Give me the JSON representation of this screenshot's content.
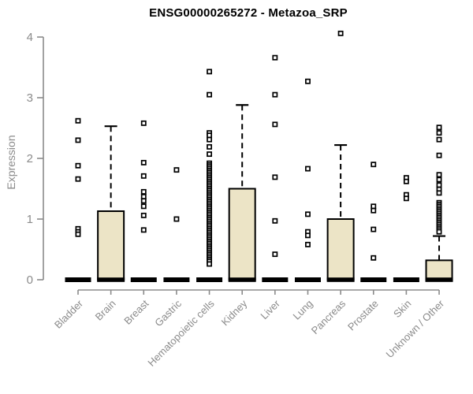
{
  "chart_data": {
    "type": "boxplot",
    "title": "ENSG00000265272 - Metazoa_SRP",
    "xlabel": "",
    "ylabel": "Expression",
    "ylim": [
      0,
      4.1
    ],
    "yticks": [
      0,
      1,
      2,
      3,
      4
    ],
    "ytick_labels": [
      "0",
      "1",
      "2",
      "3",
      "4"
    ],
    "grid": false,
    "legend": "none",
    "colors": {
      "box_fill": "#ECE4C6",
      "box_border": "#000000",
      "axis": "#8b8b8b",
      "tick_label": "#8b8b8b",
      "title": "#000000",
      "outlier_stroke": "#000000",
      "outlier_fill": "#ffffff",
      "background": "#ffffff"
    },
    "categories": [
      "Bladder",
      "Brain",
      "Breast",
      "Gastric",
      "Hematopoietic cells",
      "Kidney",
      "Liver",
      "Lung",
      "Pancreas",
      "Prostate",
      "Skin",
      "Unknown / Other"
    ],
    "series": [
      {
        "name": "Bladder",
        "q1": 0,
        "median": 0,
        "q3": 0,
        "whisker_low": 0,
        "whisker_high": 0,
        "outliers": [
          2.62,
          2.3,
          1.88,
          1.66,
          0.84,
          0.79,
          0.75
        ]
      },
      {
        "name": "Brain",
        "q1": 0,
        "median": 0,
        "q3": 1.13,
        "whisker_low": 0,
        "whisker_high": 2.53,
        "outliers": []
      },
      {
        "name": "Breast",
        "q1": 0,
        "median": 0,
        "q3": 0,
        "whisker_low": 0,
        "whisker_high": 0,
        "outliers": [
          2.58,
          1.93,
          1.71,
          1.45,
          1.37,
          1.3,
          1.21,
          1.06,
          0.82
        ]
      },
      {
        "name": "Gastric",
        "q1": 0,
        "median": 0,
        "q3": 0,
        "whisker_low": 0,
        "whisker_high": 0,
        "outliers": [
          1.81,
          1.0
        ]
      },
      {
        "name": "Hematopoietic cells",
        "q1": 0,
        "median": 0,
        "q3": 0,
        "whisker_low": 0,
        "whisker_high": 0,
        "outliers": [
          3.43,
          3.05,
          2.42,
          2.38,
          2.31,
          2.19,
          2.07,
          1.92,
          1.89,
          1.86,
          1.83,
          1.8,
          1.77,
          1.74,
          1.71,
          1.68,
          1.65,
          1.62,
          1.59,
          1.56,
          1.53,
          1.5,
          1.47,
          1.44,
          1.41,
          1.38,
          1.35,
          1.32,
          1.29,
          1.26,
          1.23,
          1.2,
          1.17,
          1.14,
          1.11,
          1.08,
          1.05,
          1.02,
          0.99,
          0.96,
          0.93,
          0.9,
          0.87,
          0.84,
          0.81,
          0.78,
          0.75,
          0.72,
          0.69,
          0.66,
          0.63,
          0.6,
          0.57,
          0.54,
          0.51,
          0.48,
          0.45,
          0.42,
          0.39,
          0.36,
          0.33,
          0.3,
          0.26
        ]
      },
      {
        "name": "Kidney",
        "q1": 0,
        "median": 0,
        "q3": 1.5,
        "whisker_low": 0,
        "whisker_high": 2.88,
        "outliers": []
      },
      {
        "name": "Liver",
        "q1": 0,
        "median": 0,
        "q3": 0,
        "whisker_low": 0,
        "whisker_high": 0,
        "outliers": [
          3.66,
          3.05,
          2.56,
          1.69,
          0.97,
          0.42
        ]
      },
      {
        "name": "Lung",
        "q1": 0,
        "median": 0,
        "q3": 0,
        "whisker_low": 0,
        "whisker_high": 0,
        "outliers": [
          3.27,
          1.83,
          1.08,
          0.79,
          0.73,
          0.58
        ]
      },
      {
        "name": "Pancreas",
        "q1": 0,
        "median": 0,
        "q3": 1.0,
        "whisker_low": 0,
        "whisker_high": 2.22,
        "outliers": [
          4.06
        ]
      },
      {
        "name": "Prostate",
        "q1": 0,
        "median": 0,
        "q3": 0,
        "whisker_low": 0,
        "whisker_high": 0,
        "outliers": [
          1.9,
          1.21,
          1.14,
          0.83,
          0.36
        ]
      },
      {
        "name": "Skin",
        "q1": 0,
        "median": 0,
        "q3": 0,
        "whisker_low": 0,
        "whisker_high": 0,
        "outliers": [
          1.68,
          1.62,
          1.4,
          1.34
        ]
      },
      {
        "name": "Unknown / Other",
        "q1": 0,
        "median": 0,
        "q3": 0.32,
        "whisker_low": 0,
        "whisker_high": 0.72,
        "outliers": [
          2.51,
          2.42,
          2.31,
          2.05,
          1.73,
          1.65,
          1.56,
          1.49,
          1.43,
          1.27,
          1.24,
          1.21,
          1.18,
          1.15,
          1.12,
          1.09,
          1.06,
          1.03,
          1.0,
          0.97,
          0.94,
          0.91,
          0.88,
          0.85,
          0.82,
          0.79
        ]
      }
    ]
  }
}
